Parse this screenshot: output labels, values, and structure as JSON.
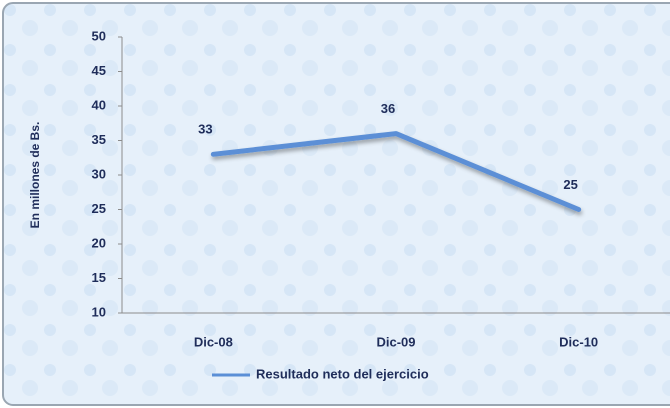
{
  "chart_data": {
    "type": "line",
    "categories": [
      "Dic-08",
      "Dic-09",
      "Dic-10"
    ],
    "series": [
      {
        "name": "Resultado neto del ejercicio",
        "color": "#5b8fd6",
        "values": [
          33,
          36,
          25
        ]
      }
    ],
    "ylabel": "En millones de Bs.",
    "ylim": [
      10,
      50
    ],
    "yticks": [
      10,
      15,
      20,
      25,
      30,
      35,
      40,
      45,
      50
    ],
    "grid": false,
    "legend": "bottom"
  }
}
